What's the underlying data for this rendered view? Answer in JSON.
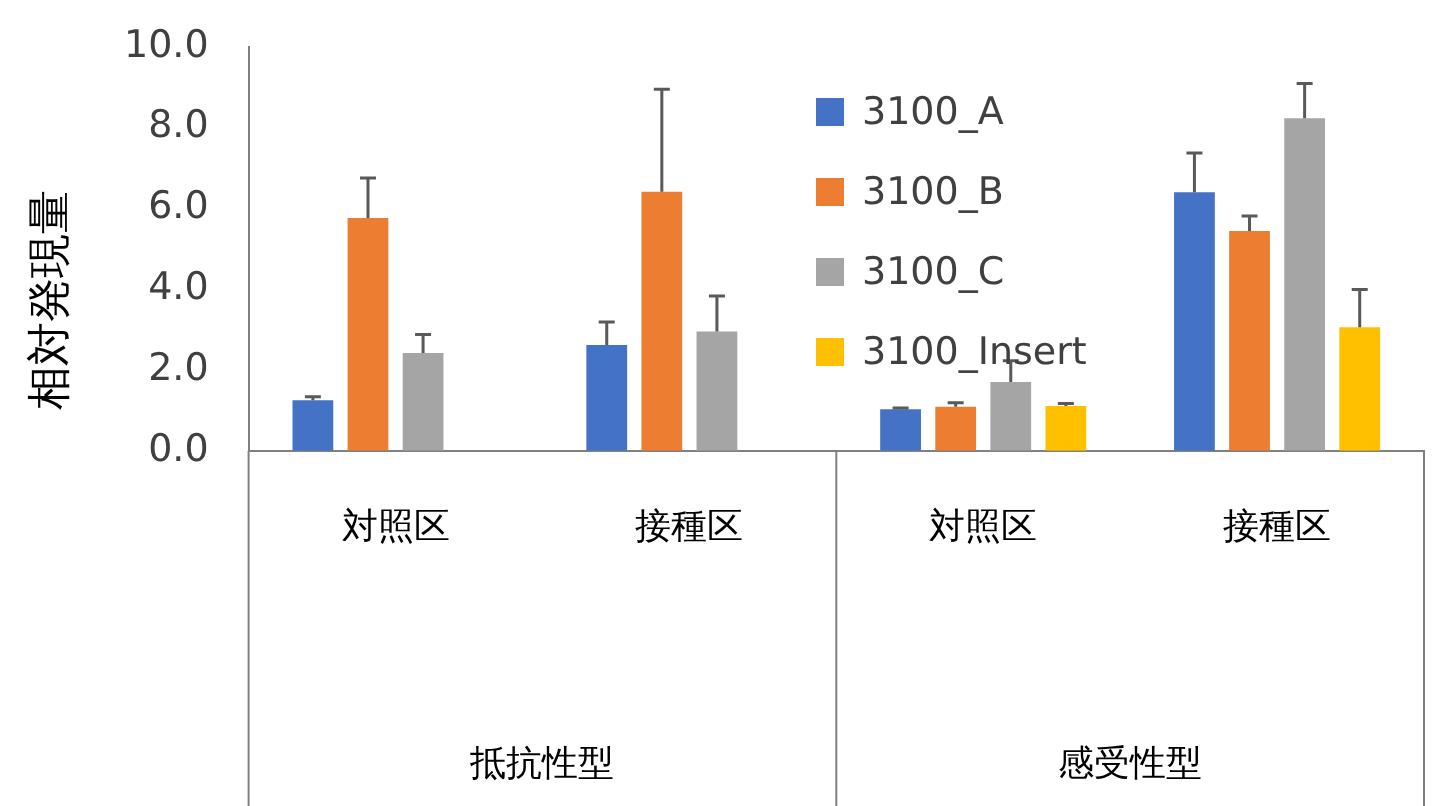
{
  "chart_data": {
    "type": "bar",
    "ylabel": "相対発現量",
    "categories": [
      "対照区",
      "接種区",
      "対照区",
      "接種区"
    ],
    "annotations": [
      "抵抗性型",
      "感受性型"
    ],
    "series": [
      {
        "name": "3100_A",
        "color": "#4472c4",
        "values": [
          1.25,
          2.62,
          1.03,
          6.4
        ],
        "errors": [
          [
            1.25,
            1.34
          ],
          [
            2.62,
            3.19
          ],
          [
            1.03,
            1.06
          ],
          [
            6.4,
            7.37
          ]
        ]
      },
      {
        "name": "3100_B",
        "color": "#ed7d31",
        "values": [
          5.76,
          6.41,
          1.09,
          5.44
        ],
        "errors": [
          [
            5.76,
            6.75
          ],
          [
            6.41,
            8.95
          ],
          [
            1.09,
            1.19
          ],
          [
            5.44,
            5.81
          ]
        ]
      },
      {
        "name": "3100_C",
        "color": "#a5a5a5",
        "values": [
          2.42,
          2.95,
          1.7,
          8.23
        ],
        "errors": [
          [
            2.42,
            2.88
          ],
          [
            2.95,
            3.83
          ],
          [
            1.7,
            2.23
          ],
          [
            8.23,
            9.09
          ]
        ]
      },
      {
        "name": "3100_Insert",
        "color": "#ffc000",
        "values": [
          null,
          null,
          1.11,
          3.06
        ],
        "errors": [
          null,
          null,
          [
            1.11,
            1.17
          ],
          [
            3.06,
            3.99
          ]
        ]
      }
    ],
    "ylim": [
      0,
      10
    ],
    "yticks": [
      {
        "value": 0,
        "label": "0.0"
      },
      {
        "value": 2,
        "label": "2.0"
      },
      {
        "value": 4,
        "label": "4.0"
      },
      {
        "value": 6,
        "label": "6.0"
      },
      {
        "value": 8,
        "label": "8.0"
      },
      {
        "value": 10,
        "label": "10.0"
      }
    ],
    "grid": false,
    "legend": "top right"
  }
}
